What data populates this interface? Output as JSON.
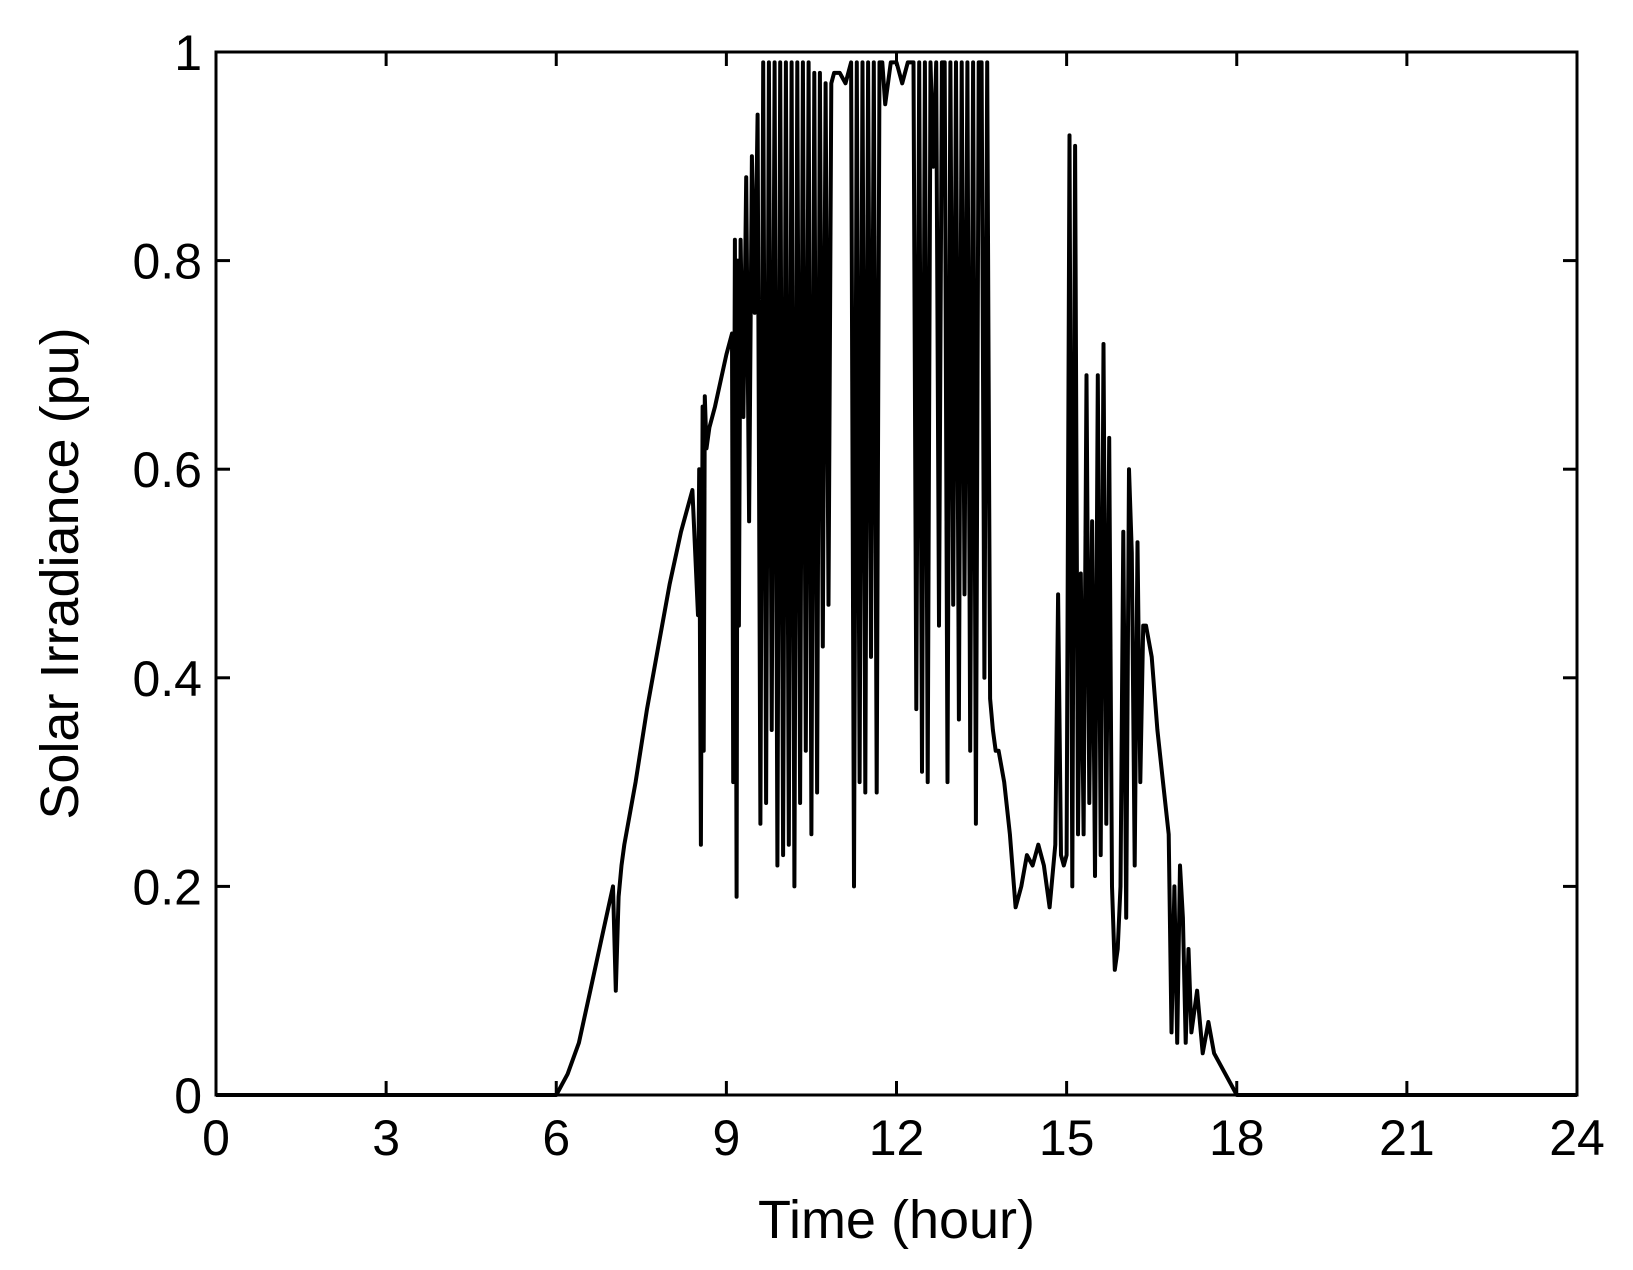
{
  "chart_data": {
    "type": "line",
    "title": "",
    "xlabel": "Time (hour)",
    "ylabel": "Solar Irradiance (pu)",
    "xlim": [
      0,
      24
    ],
    "ylim": [
      0,
      1
    ],
    "xticks": [
      0,
      3,
      6,
      9,
      12,
      15,
      18,
      21,
      24
    ],
    "yticks": [
      0,
      0.2,
      0.4,
      0.6,
      0.8,
      1
    ],
    "xtick_labels": [
      "0",
      "3",
      "6",
      "9",
      "12",
      "15",
      "18",
      "21",
      "24"
    ],
    "ytick_labels": [
      "0",
      "0.2",
      "0.4",
      "0.6",
      "0.8",
      "1"
    ],
    "grid": false,
    "line_color": "#000000",
    "series": [
      {
        "x": [
          0,
          6.0,
          6.1,
          6.2,
          6.4,
          6.6,
          6.8,
          7.0,
          7.05,
          7.1,
          7.15,
          7.2,
          7.4,
          7.6,
          7.8,
          8.0,
          8.2,
          8.4,
          8.5,
          8.52,
          8.55,
          8.58,
          8.6,
          8.62,
          8.65,
          8.7,
          8.8,
          9.0,
          9.1,
          9.12,
          9.15,
          9.18,
          9.2,
          9.22,
          9.25,
          9.3,
          9.35,
          9.4,
          9.45,
          9.5,
          9.55,
          9.6,
          9.65,
          9.7,
          9.75,
          9.8,
          9.85,
          9.9,
          9.95,
          10.0,
          10.05,
          10.1,
          10.15,
          10.2,
          10.25,
          10.3,
          10.35,
          10.4,
          10.45,
          10.5,
          10.55,
          10.6,
          10.65,
          10.7,
          10.75,
          10.8,
          10.85,
          10.9,
          11.0,
          11.1,
          11.2,
          11.25,
          11.3,
          11.35,
          11.4,
          11.45,
          11.5,
          11.55,
          11.6,
          11.65,
          11.7,
          11.75,
          11.8,
          11.9,
          12.0,
          12.1,
          12.2,
          12.3,
          12.35,
          12.4,
          12.45,
          12.5,
          12.55,
          12.6,
          12.65,
          12.7,
          12.75,
          12.8,
          12.85,
          12.9,
          12.95,
          13.0,
          13.05,
          13.1,
          13.15,
          13.2,
          13.25,
          13.3,
          13.35,
          13.4,
          13.45,
          13.5,
          13.55,
          13.6,
          13.65,
          13.7,
          13.75,
          13.8,
          13.9,
          14.0,
          14.1,
          14.2,
          14.3,
          14.4,
          14.5,
          14.6,
          14.7,
          14.8,
          14.85,
          14.9,
          14.95,
          15.0,
          15.05,
          15.1,
          15.15,
          15.2,
          15.25,
          15.3,
          15.35,
          15.4,
          15.45,
          15.5,
          15.55,
          15.6,
          15.65,
          15.7,
          15.75,
          15.8,
          15.85,
          15.9,
          15.95,
          16.0,
          16.05,
          16.1,
          16.15,
          16.2,
          16.25,
          16.3,
          16.35,
          16.4,
          16.5,
          16.6,
          16.7,
          16.8,
          16.85,
          16.9,
          16.95,
          17.0,
          17.05,
          17.1,
          17.15,
          17.2,
          17.3,
          17.4,
          17.5,
          17.6,
          17.8,
          18.0,
          24
        ],
        "y": [
          0,
          0,
          0.01,
          0.02,
          0.05,
          0.1,
          0.15,
          0.2,
          0.1,
          0.19,
          0.22,
          0.24,
          0.3,
          0.37,
          0.43,
          0.49,
          0.54,
          0.58,
          0.46,
          0.6,
          0.24,
          0.66,
          0.33,
          0.67,
          0.62,
          0.64,
          0.66,
          0.71,
          0.73,
          0.3,
          0.82,
          0.19,
          0.8,
          0.45,
          0.82,
          0.65,
          0.88,
          0.55,
          0.9,
          0.75,
          0.94,
          0.26,
          0.99,
          0.28,
          0.99,
          0.35,
          0.99,
          0.22,
          0.99,
          0.23,
          0.99,
          0.24,
          0.99,
          0.2,
          0.99,
          0.28,
          0.99,
          0.33,
          0.99,
          0.25,
          0.98,
          0.29,
          0.98,
          0.43,
          0.97,
          0.47,
          0.97,
          0.98,
          0.98,
          0.97,
          0.99,
          0.2,
          0.99,
          0.3,
          0.99,
          0.29,
          0.99,
          0.42,
          0.99,
          0.29,
          0.99,
          0.99,
          0.95,
          0.99,
          0.99,
          0.97,
          0.99,
          0.99,
          0.37,
          0.99,
          0.31,
          0.99,
          0.3,
          0.99,
          0.89,
          0.99,
          0.45,
          0.99,
          0.99,
          0.3,
          0.99,
          0.47,
          0.99,
          0.36,
          0.99,
          0.48,
          0.99,
          0.33,
          0.99,
          0.26,
          0.99,
          0.99,
          0.4,
          0.99,
          0.38,
          0.35,
          0.33,
          0.33,
          0.3,
          0.25,
          0.18,
          0.2,
          0.23,
          0.22,
          0.24,
          0.22,
          0.18,
          0.24,
          0.48,
          0.23,
          0.22,
          0.23,
          0.92,
          0.2,
          0.91,
          0.25,
          0.5,
          0.25,
          0.69,
          0.28,
          0.55,
          0.21,
          0.69,
          0.23,
          0.72,
          0.26,
          0.63,
          0.2,
          0.12,
          0.14,
          0.2,
          0.54,
          0.17,
          0.6,
          0.52,
          0.22,
          0.53,
          0.3,
          0.45,
          0.45,
          0.42,
          0.35,
          0.3,
          0.25,
          0.06,
          0.2,
          0.05,
          0.22,
          0.17,
          0.05,
          0.14,
          0.06,
          0.1,
          0.04,
          0.07,
          0.04,
          0.02,
          0,
          0
        ]
      }
    ]
  }
}
